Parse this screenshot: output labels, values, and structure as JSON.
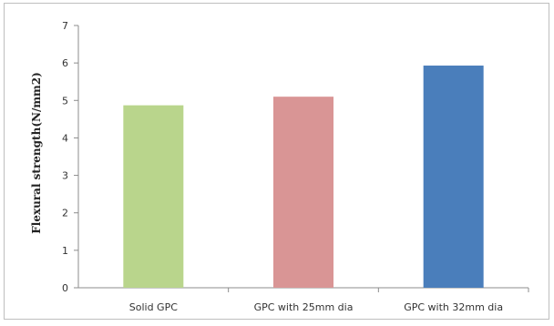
{
  "chart_data": {
    "type": "bar",
    "categories": [
      "Solid GPC",
      "GPC with 25mm dia",
      "GPC with 32mm dia"
    ],
    "values": [
      4.87,
      5.1,
      5.93
    ],
    "colors": [
      "#b9d58c",
      "#d99595",
      "#4a7ebb"
    ],
    "ylabel": "Flexural strength(N/mm2)",
    "xlabel": "",
    "ylim": [
      0,
      7
    ],
    "yticks": [
      "0",
      "1",
      "2",
      "3",
      "4",
      "5",
      "6",
      "7"
    ],
    "grid": false,
    "legend": "none"
  }
}
